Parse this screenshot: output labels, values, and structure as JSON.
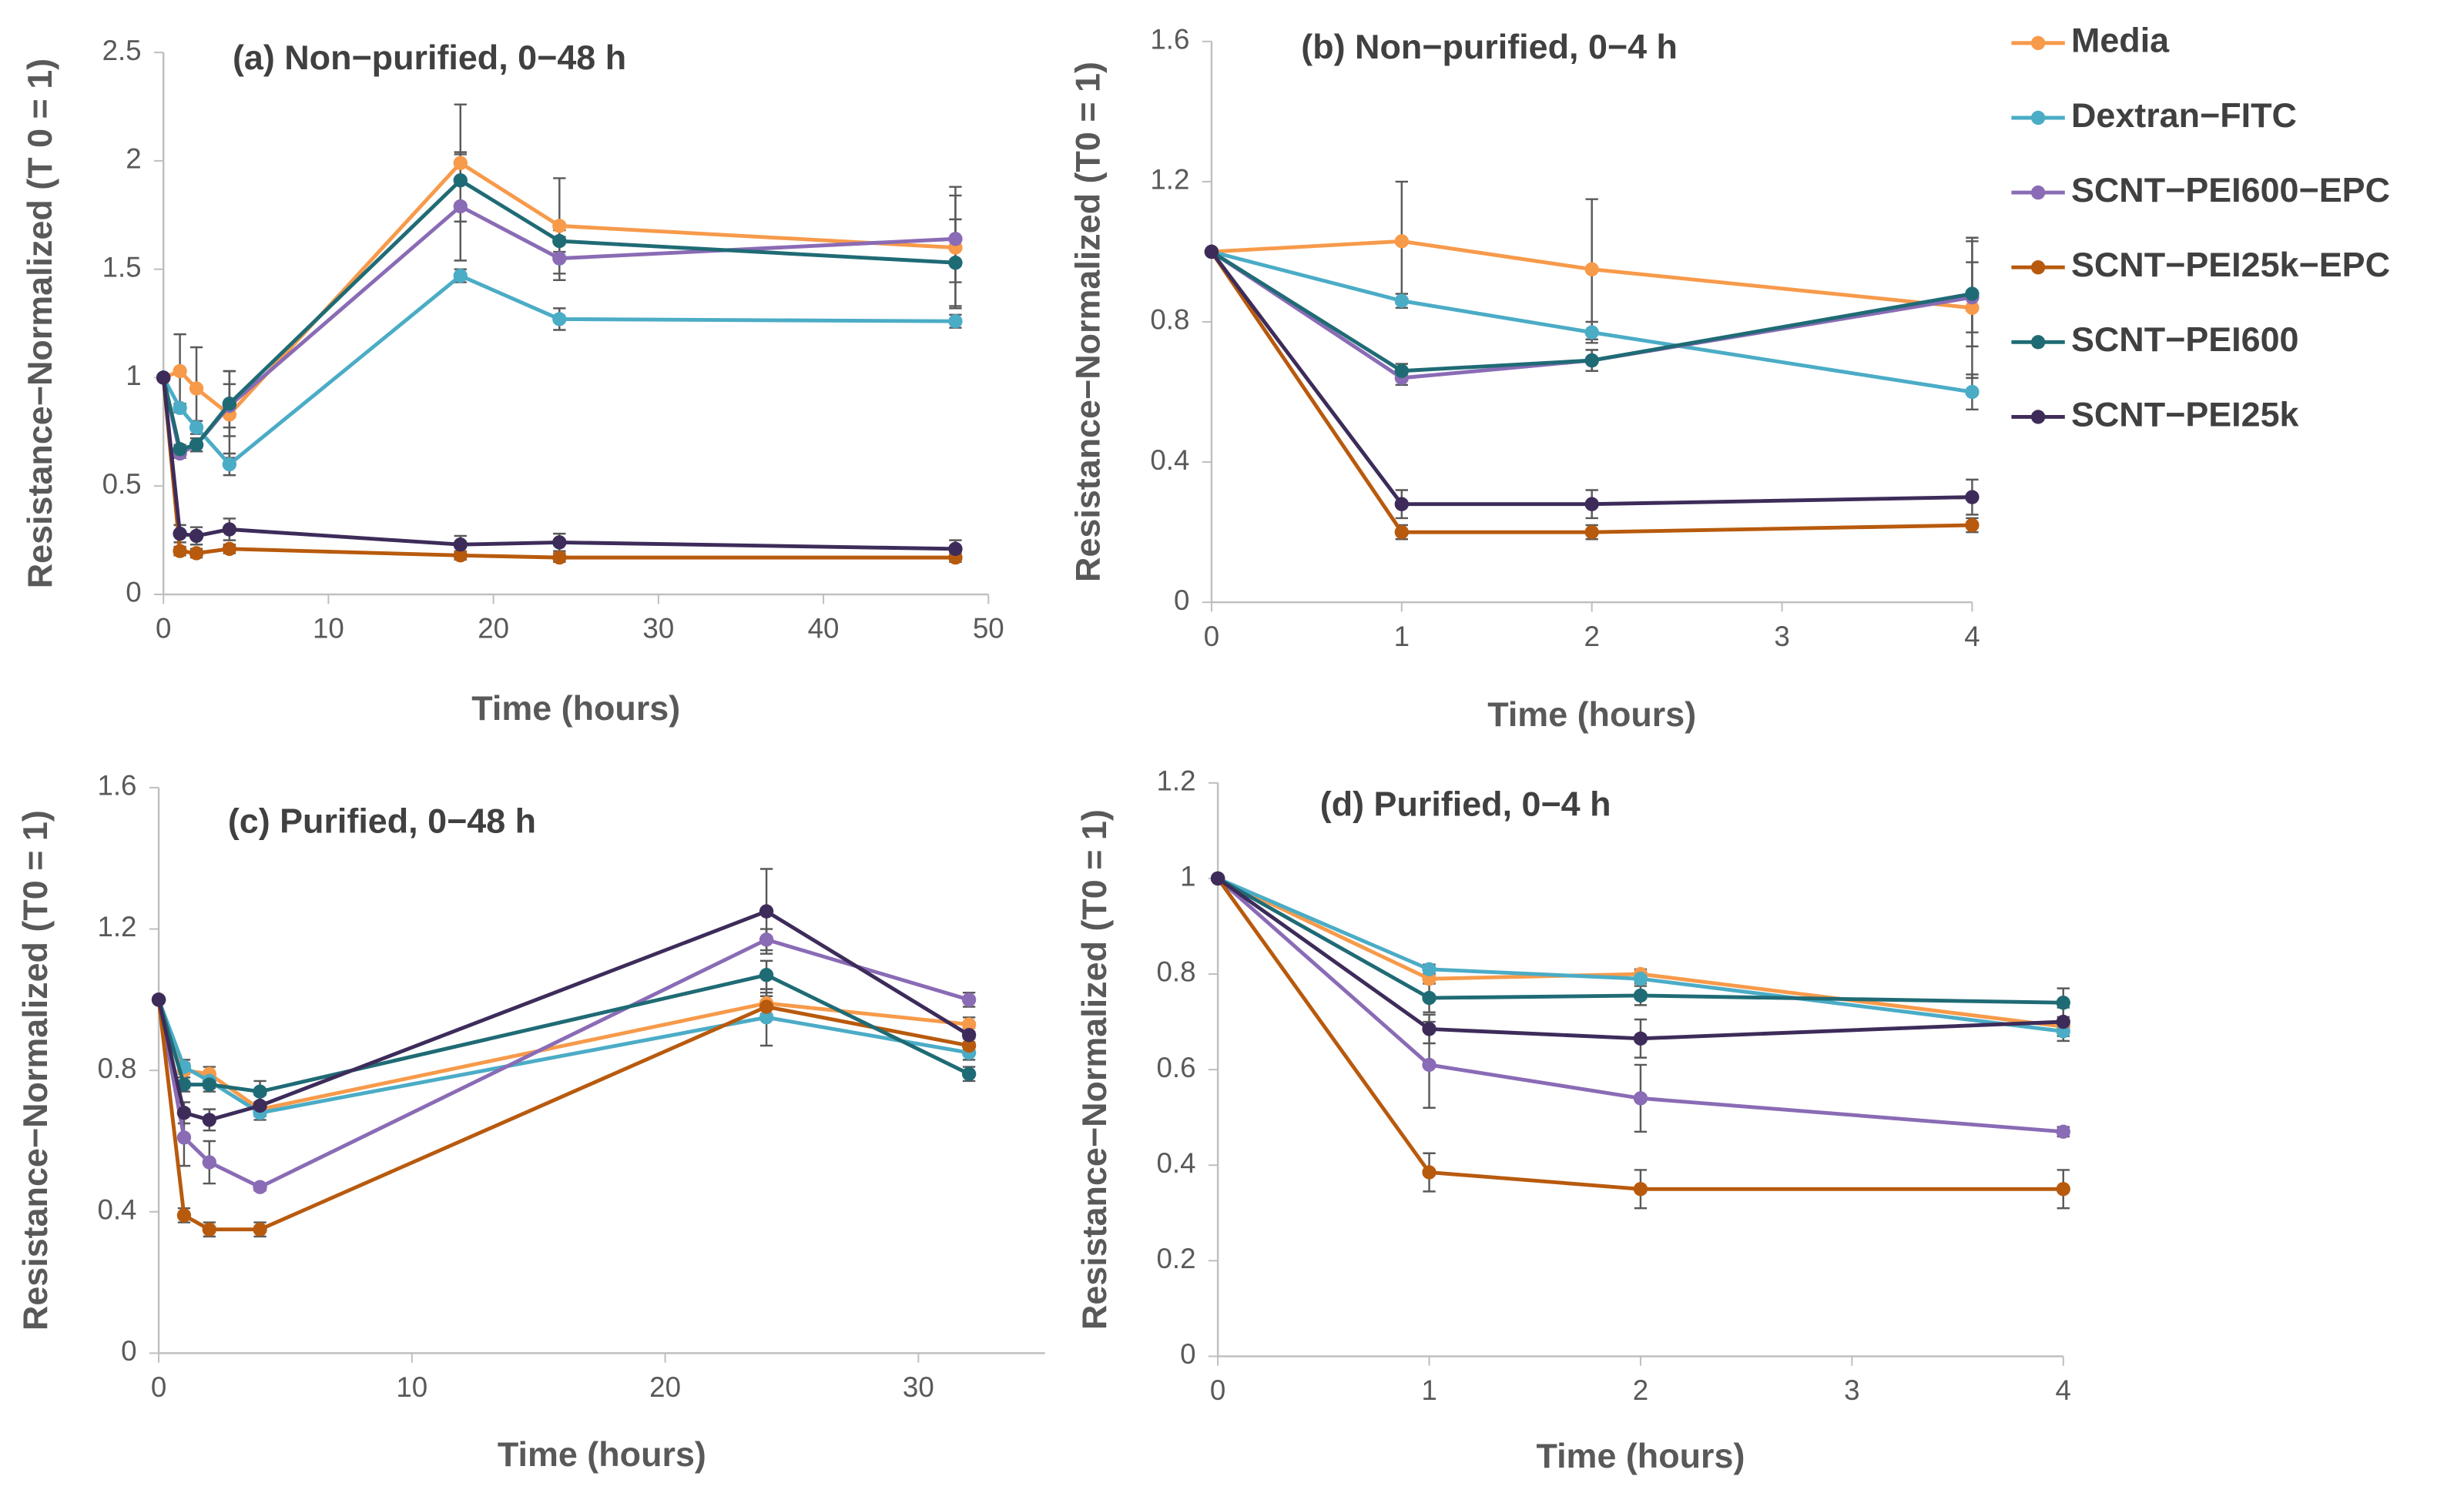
{
  "legend": {
    "position": "upper right",
    "items": [
      {
        "name": "Media",
        "color": "#f79a4a"
      },
      {
        "name": "Dextran−FITC",
        "color": "#4bacc6"
      },
      {
        "name": "SCNT−PEI600−EPC",
        "color": "#8a6bb5"
      },
      {
        "name": "SCNT−PEI25k−EPC",
        "color": "#b85a0d"
      },
      {
        "name": "SCNT−PEI600",
        "color": "#1f6b75"
      },
      {
        "name": "SCNT−PEI25k",
        "color": "#3d2c5a"
      }
    ]
  },
  "chart_data": [
    {
      "type": "line",
      "title": "(a) Non−purified,  0−48 h",
      "xlabel": "Time (hours)",
      "ylabel": "Resistance−Normalized (T 0 = 1)",
      "x": [
        0,
        1,
        2,
        4,
        18,
        24,
        48
      ],
      "xlim": [
        0,
        50
      ],
      "xticks": [
        0,
        10,
        20,
        30,
        40,
        50
      ],
      "ylim": [
        0,
        2.5
      ],
      "yticks": [
        0,
        0.5,
        1,
        1.5,
        2,
        2.5
      ],
      "series": [
        {
          "values": [
            1,
            1.03,
            0.95,
            0.83,
            1.99,
            1.7,
            1.6
          ],
          "errors": [
            0,
            0.17,
            0.19,
            0.2,
            0.27,
            0.22,
            0.28
          ]
        },
        {
          "values": [
            1,
            0.86,
            0.77,
            0.6,
            1.47,
            1.27,
            1.26
          ],
          "errors": [
            0,
            0.02,
            0.03,
            0.05,
            0.03,
            0.05,
            0.03
          ]
        },
        {
          "values": [
            1,
            0.65,
            0.69,
            0.87,
            1.79,
            1.55,
            1.64
          ],
          "errors": [
            0,
            0.02,
            0.03,
            0.1,
            0.25,
            0.1,
            0.2
          ]
        },
        {
          "values": [
            1,
            0.2,
            0.19,
            0.21,
            0.18,
            0.17,
            0.17
          ],
          "errors": [
            0,
            0.02,
            0.02,
            0.02,
            0.02,
            0.02,
            0.02
          ]
        },
        {
          "values": [
            1,
            0.67,
            0.69,
            0.88,
            1.91,
            1.63,
            1.53
          ],
          "errors": [
            0,
            0.02,
            0.03,
            0.15,
            0.12,
            0.05,
            0.2
          ]
        },
        {
          "values": [
            1,
            0.28,
            0.27,
            0.3,
            0.23,
            0.24,
            0.21
          ],
          "errors": [
            0,
            0.04,
            0.04,
            0.05,
            0.04,
            0.04,
            0.04
          ]
        }
      ]
    },
    {
      "type": "line",
      "title": "(b) Non−purified,  0−4 h",
      "xlabel": "Time (hours)",
      "ylabel": "Resistance−Normalized (T0 = 1)",
      "x": [
        0,
        1,
        2,
        4
      ],
      "xlim": [
        0,
        4
      ],
      "xticks": [
        0,
        1,
        2,
        3,
        4
      ],
      "ylim": [
        0,
        1.6
      ],
      "yticks": [
        0,
        0.4,
        0.8,
        1.2,
        1.6
      ],
      "series": [
        {
          "values": [
            1,
            1.03,
            0.95,
            0.84
          ],
          "errors": [
            0,
            0.17,
            0.2,
            0.2
          ]
        },
        {
          "values": [
            1,
            0.86,
            0.77,
            0.6
          ],
          "errors": [
            0,
            0.02,
            0.03,
            0.05
          ]
        },
        {
          "values": [
            1,
            0.64,
            0.69,
            0.87
          ],
          "errors": [
            0,
            0.02,
            0.03,
            0.1
          ]
        },
        {
          "values": [
            1,
            0.2,
            0.2,
            0.22
          ],
          "errors": [
            0,
            0.02,
            0.02,
            0.02
          ]
        },
        {
          "values": [
            1,
            0.66,
            0.69,
            0.88
          ],
          "errors": [
            0,
            0.02,
            0.03,
            0.15
          ]
        },
        {
          "values": [
            1,
            0.28,
            0.28,
            0.3
          ],
          "errors": [
            0,
            0.04,
            0.04,
            0.05
          ]
        }
      ]
    },
    {
      "type": "line",
      "title": "(c) Purified, 0−48 h",
      "xlabel": "Time (hours)",
      "ylabel": "Resistance−Normalized (T0 = 1)",
      "x": [
        0,
        1,
        2,
        4,
        24,
        32
      ],
      "xlim": [
        0,
        35
      ],
      "xticks": [
        0,
        10,
        20,
        30
      ],
      "ylim": [
        0,
        1.6
      ],
      "yticks": [
        0,
        0.4,
        0.8,
        1.2,
        1.6
      ],
      "series": [
        {
          "values": [
            1,
            0.8,
            0.79,
            0.69,
            0.99,
            0.93
          ],
          "errors": [
            0,
            0.02,
            0.02,
            0.02,
            0.03,
            0.02
          ]
        },
        {
          "values": [
            1,
            0.81,
            0.77,
            0.68,
            0.95,
            0.85
          ],
          "errors": [
            0,
            0.02,
            0.02,
            0.02,
            0.08,
            0.02
          ]
        },
        {
          "values": [
            1,
            0.61,
            0.54,
            0.47,
            1.17,
            1.0
          ],
          "errors": [
            0,
            0.08,
            0.06,
            0.01,
            0.03,
            0.02
          ]
        },
        {
          "values": [
            1,
            0.39,
            0.35,
            0.35,
            0.98,
            0.87
          ],
          "errors": [
            0,
            0.02,
            0.02,
            0.02,
            0.03,
            0.02
          ]
        },
        {
          "values": [
            1,
            0.76,
            0.76,
            0.74,
            1.07,
            0.79
          ],
          "errors": [
            0,
            0.02,
            0.02,
            0.03,
            0.04,
            0.02
          ]
        },
        {
          "values": [
            1,
            0.68,
            0.66,
            0.7,
            1.25,
            0.9
          ],
          "errors": [
            0,
            0.03,
            0.03,
            0.03,
            0.12,
            0.02
          ]
        }
      ]
    },
    {
      "type": "line",
      "title": "(d) Purified, 0−4 h",
      "xlabel": "Time (hours)",
      "ylabel": "Resistance−Normalized (T0 = 1)",
      "x": [
        0,
        1,
        2,
        4
      ],
      "xlim": [
        0,
        4
      ],
      "xticks": [
        0,
        1,
        2,
        3,
        4
      ],
      "ylim": [
        0,
        1.2
      ],
      "yticks": [
        0,
        0.2,
        0.4,
        0.6,
        0.8,
        1,
        1.2
      ],
      "series": [
        {
          "values": [
            1,
            0.79,
            0.8,
            0.69
          ],
          "errors": [
            0,
            0.01,
            0.01,
            0.01
          ]
        },
        {
          "values": [
            1,
            0.81,
            0.79,
            0.68
          ],
          "errors": [
            0,
            0.01,
            0.01,
            0.02
          ]
        },
        {
          "values": [
            1,
            0.61,
            0.54,
            0.47
          ],
          "errors": [
            0,
            0.09,
            0.07,
            0.01
          ]
        },
        {
          "values": [
            1,
            0.385,
            0.35,
            0.35
          ],
          "errors": [
            0,
            0.04,
            0.04,
            0.04
          ]
        },
        {
          "values": [
            1,
            0.75,
            0.755,
            0.74
          ],
          "errors": [
            0,
            0.03,
            0.02,
            0.03
          ]
        },
        {
          "values": [
            1,
            0.685,
            0.665,
            0.7
          ],
          "errors": [
            0,
            0.03,
            0.04,
            0.03
          ]
        }
      ]
    }
  ]
}
